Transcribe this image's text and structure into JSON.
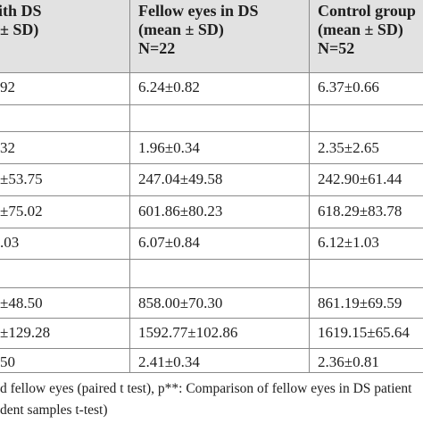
{
  "header": {
    "col1": [
      "ith DS",
      "± SD)"
    ],
    "col2": [
      "Fellow eyes in DS",
      "(mean ± SD)",
      "N=22"
    ],
    "col3": [
      "Control group",
      "(mean ± SD)",
      "N=52"
    ]
  },
  "rows": [
    {
      "c1": "92",
      "c2": "6.24±0.82",
      "c3": "6.37±0.66"
    },
    {
      "c1": "",
      "c2": "",
      "c3": ""
    },
    {
      "c1": "32",
      "c2": "1.96±0.34",
      "c3": "2.35±2.65"
    },
    {
      "c1": "±53.75",
      "c2": "247.04±49.58",
      "c3": "242.90±61.44"
    },
    {
      "c1": "±75.02",
      "c2": "601.86±80.23",
      "c3": "618.29±83.78"
    },
    {
      "c1": ".03",
      "c2": "6.07±0.84",
      "c3": "6.12±1.03"
    },
    {
      "c1": "",
      "c2": "",
      "c3": ""
    },
    {
      "c1": "±48.50",
      "c2": "858.00±70.30",
      "c3": "861.19±69.59"
    },
    {
      "c1": "±129.28",
      "c2": "1592.77±102.86",
      "c3": "1619.15±65.64"
    },
    {
      "c1": "50",
      "c2": "2.41±0.34",
      "c3": "2.36±0.81"
    }
  ],
  "footer": {
    "line1": "d fellow eyes (paired t test), p**: Comparison of fellow eyes in DS patient",
    "line2": "dent samples t-test)"
  }
}
